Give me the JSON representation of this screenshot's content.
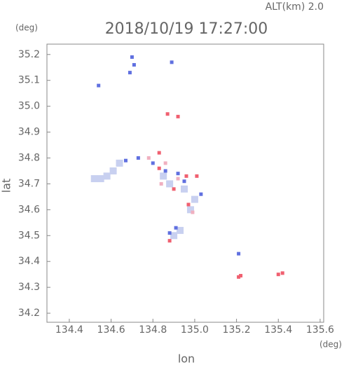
{
  "chart_data": {
    "type": "scatter",
    "title": "2018/10/19 17:27:00",
    "subtitle": "ALT(km) 2.0",
    "x_label": "lon",
    "y_label": "lat",
    "x_unit": "(deg)",
    "y_unit": "(deg)",
    "xlim": [
      134.293,
      135.617
    ],
    "ylim": [
      34.165,
      35.24
    ],
    "xticks": [
      134.4,
      134.6,
      134.8,
      {
        "value": 135,
        "label": "135.0"
      },
      135.2,
      135.4,
      135.6
    ],
    "yticks": [
      34.2,
      34.3,
      34.4,
      34.5,
      34.6,
      34.7,
      34.8,
      34.9,
      {
        "value": 35,
        "label": "35.0"
      },
      35.1,
      35.2
    ],
    "series": [
      {
        "color": "#c8d0f0",
        "x": [
          134.52,
          134.55,
          134.58,
          134.61,
          134.64,
          134.85,
          134.88,
          134.95,
          135.0,
          134.9,
          134.93,
          134.98
        ],
        "y": [
          34.72,
          34.72,
          34.73,
          34.75,
          34.78,
          34.73,
          34.7,
          34.68,
          34.64,
          34.5,
          34.52,
          34.6
        ]
      },
      {
        "color": "#6070e0",
        "x": [
          134.54,
          134.69,
          134.71,
          134.7,
          134.67,
          134.73,
          134.8,
          134.86,
          134.92,
          134.95,
          135.03,
          134.88,
          134.91,
          135.21,
          134.89
        ],
        "y": [
          35.08,
          35.13,
          35.16,
          35.19,
          34.79,
          34.8,
          34.78,
          34.75,
          34.74,
          34.71,
          34.66,
          34.51,
          34.53,
          34.43,
          35.17
        ]
      },
      {
        "color": "#f06070",
        "x": [
          134.87,
          134.92,
          134.83,
          134.83,
          134.9,
          134.97,
          135.01,
          134.88,
          135.21,
          135.22,
          135.42,
          135.4,
          134.96
        ],
        "y": [
          34.97,
          34.96,
          34.82,
          34.76,
          34.68,
          34.62,
          34.73,
          34.48,
          34.34,
          34.345,
          34.355,
          34.35,
          34.73
        ]
      },
      {
        "color": "#f0b0c0",
        "x": [
          134.78,
          134.86,
          134.92,
          134.99,
          134.84
        ],
        "y": [
          34.8,
          34.78,
          34.72,
          34.59,
          34.7
        ]
      }
    ]
  }
}
